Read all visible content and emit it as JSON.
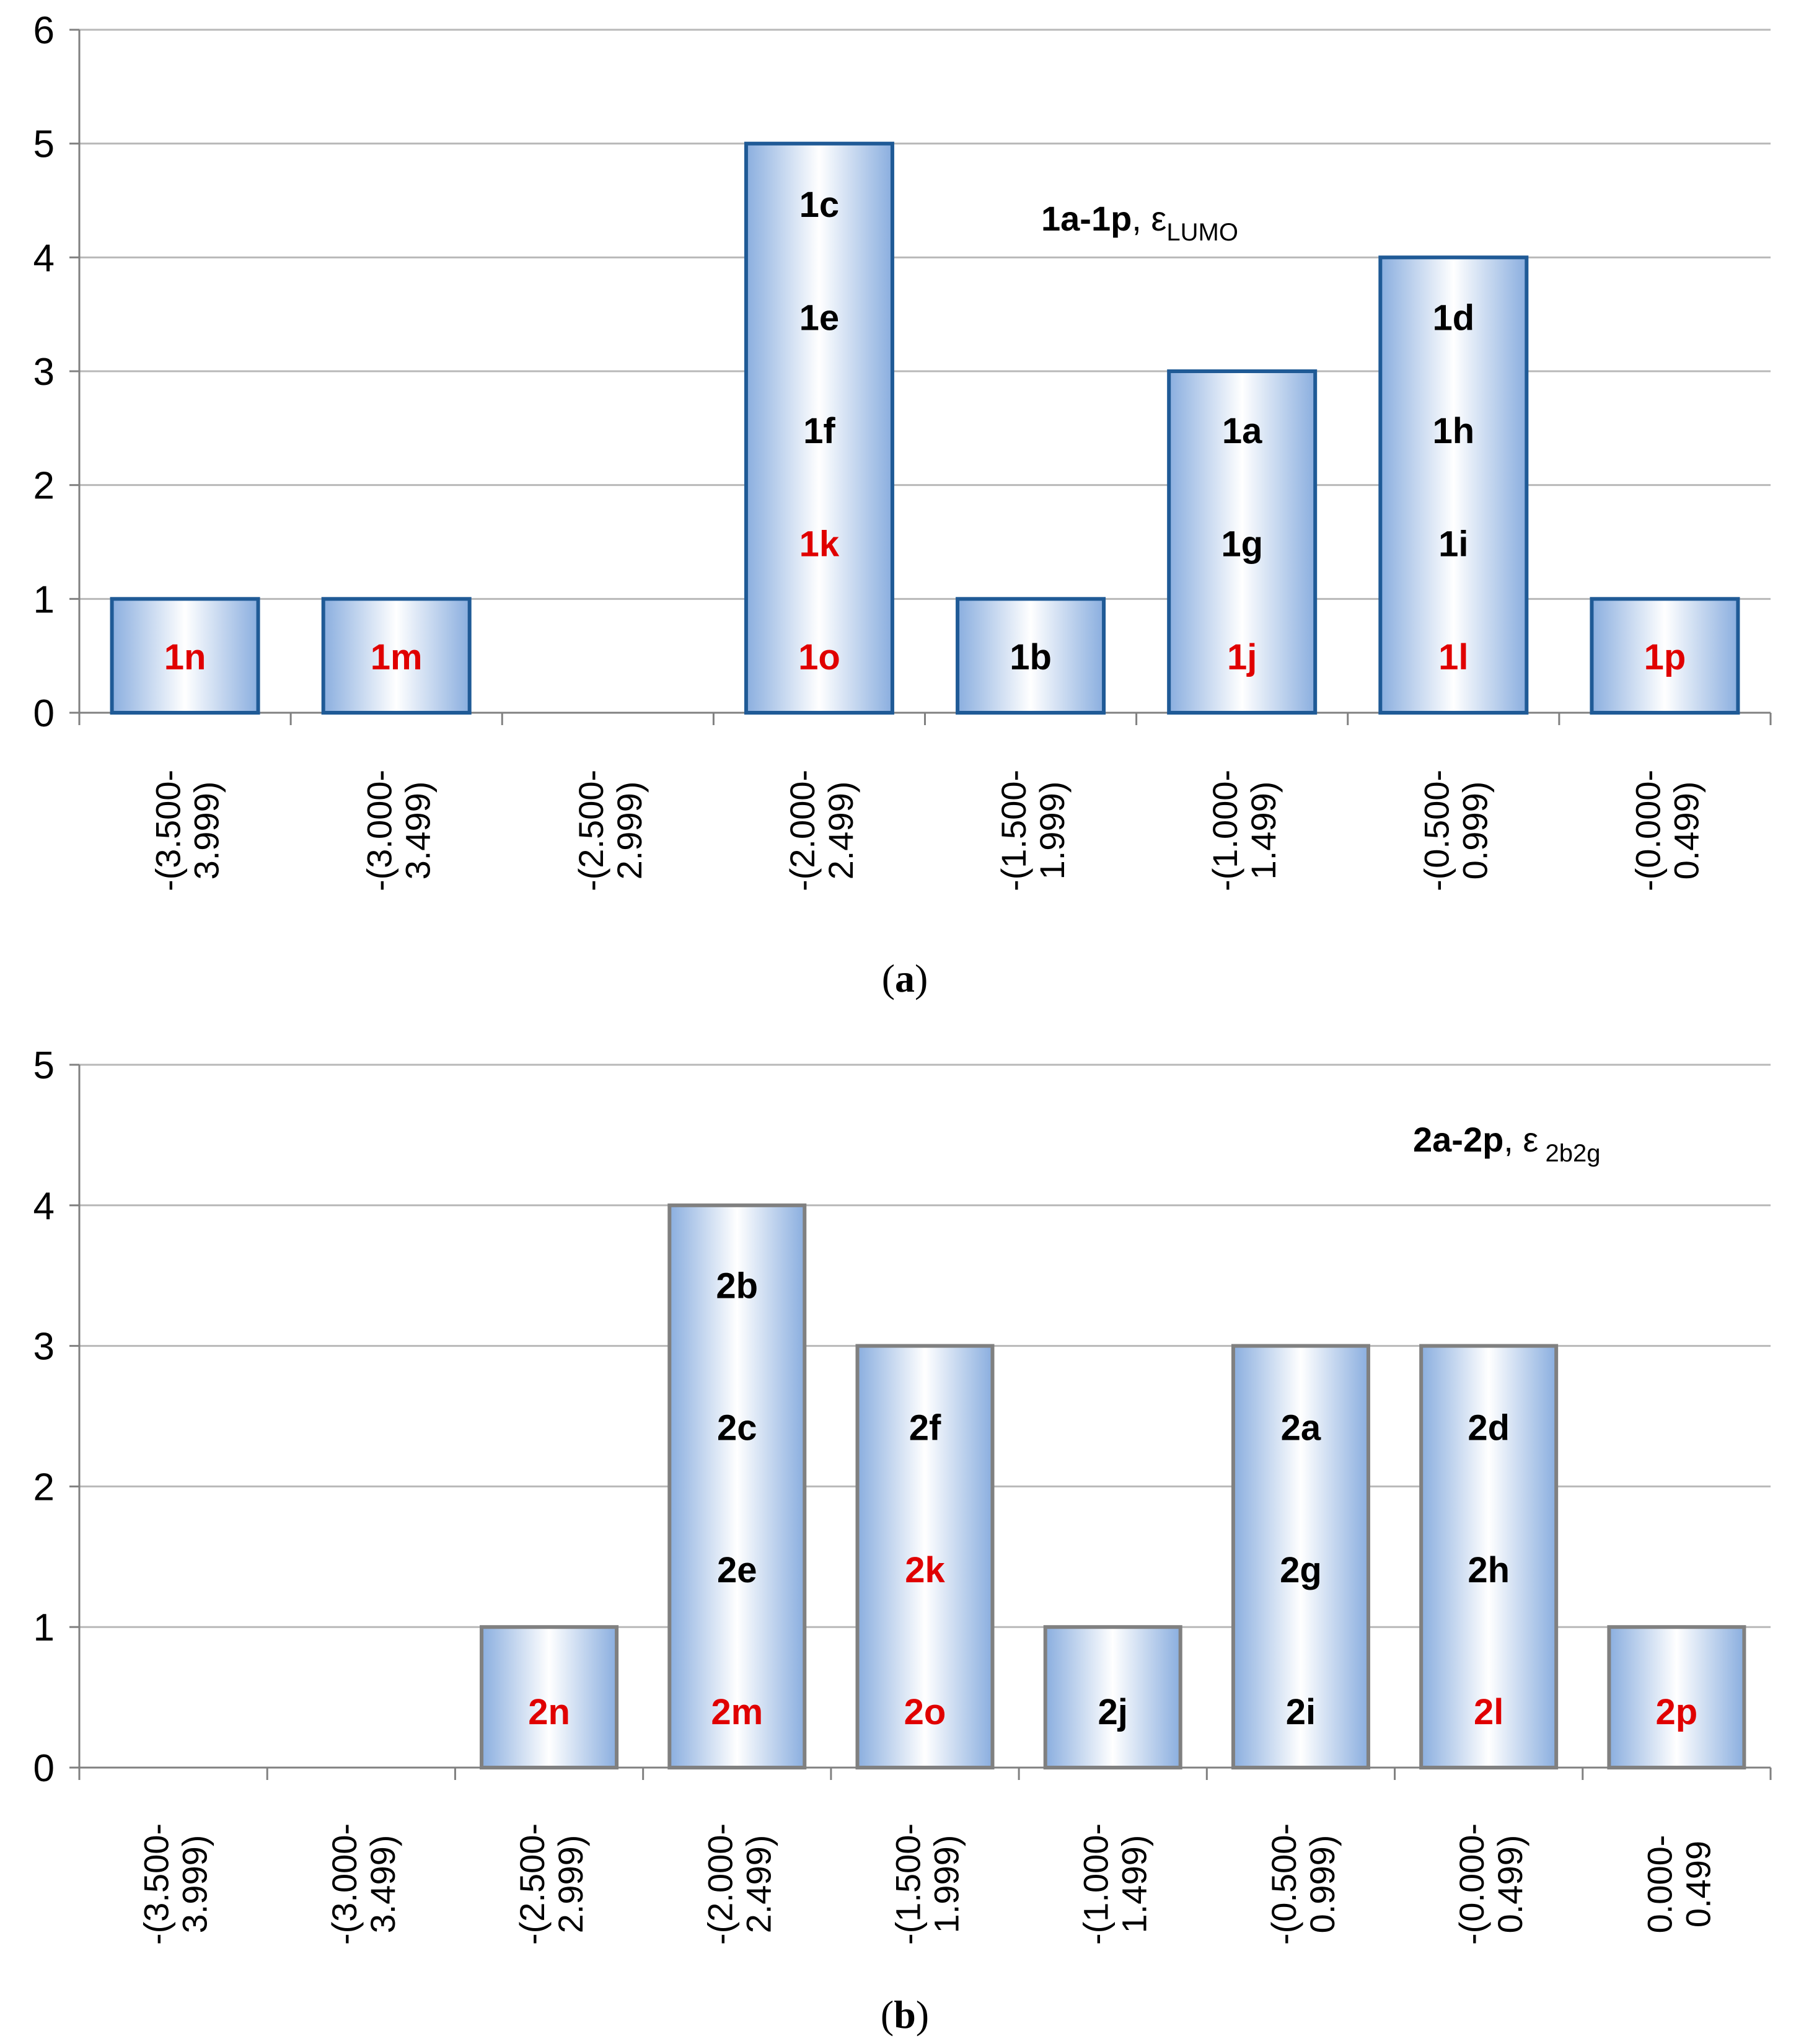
{
  "chart_data": [
    {
      "panel": "a",
      "type": "bar",
      "caption": "(a)",
      "title": {
        "bold": "1a-1p",
        "sep": ", ",
        "sym": "ε",
        "sub": "LUMO"
      },
      "ylim": [
        0,
        6
      ],
      "yticks": [
        "0",
        "1",
        "2",
        "3",
        "4",
        "5",
        "6"
      ],
      "grid": true,
      "edge_color": "#1f5a96",
      "categories": [
        {
          "l1": "-(3.500-",
          "l2": "3.999)"
        },
        {
          "l1": "-(3.000-",
          "l2": "3.499)"
        },
        {
          "l1": "-(2.500-",
          "l2": "2.999)"
        },
        {
          "l1": "-(2.000-",
          "l2": "2.499)"
        },
        {
          "l1": "-(1.500-",
          "l2": "1.999)"
        },
        {
          "l1": "-(1.000-",
          "l2": "1.499)"
        },
        {
          "l1": "-(0.500-",
          "l2": "0.999)"
        },
        {
          "l1": "-(0.000-",
          "l2": "0.499)"
        }
      ],
      "values": [
        1,
        1,
        0,
        5,
        1,
        3,
        4,
        1
      ],
      "bar_labels": [
        [
          {
            "text": "1n",
            "color": "#e00000"
          }
        ],
        [
          {
            "text": "1m",
            "color": "#e00000"
          }
        ],
        [],
        [
          {
            "text": "1c",
            "color": "#000000"
          },
          {
            "text": "1e",
            "color": "#000000"
          },
          {
            "text": "1f",
            "color": "#000000"
          },
          {
            "text": "1k",
            "color": "#e00000"
          },
          {
            "text": "1o",
            "color": "#e00000"
          }
        ],
        [
          {
            "text": "1b",
            "color": "#000000"
          }
        ],
        [
          {
            "text": "1a",
            "color": "#000000"
          },
          {
            "text": "1g",
            "color": "#000000"
          },
          {
            "text": "1j",
            "color": "#e00000"
          }
        ],
        [
          {
            "text": "1d",
            "color": "#000000"
          },
          {
            "text": "1h",
            "color": "#000000"
          },
          {
            "text": "1i",
            "color": "#000000"
          },
          {
            "text": "1l",
            "color": "#e00000"
          }
        ],
        [
          {
            "text": "1p",
            "color": "#e00000"
          }
        ]
      ]
    },
    {
      "panel": "b",
      "type": "bar",
      "caption": "(b)",
      "title": {
        "bold": "2a-2p",
        "sep": ", ",
        "sym": "ε",
        "sub": " 2b2g"
      },
      "ylim": [
        0,
        5
      ],
      "yticks": [
        "0",
        "1",
        "2",
        "3",
        "4",
        "5"
      ],
      "grid": true,
      "edge_color": "#808080",
      "categories": [
        {
          "l1": "-(3.500-",
          "l2": "3.999)"
        },
        {
          "l1": "-(3.000-",
          "l2": "3.499)"
        },
        {
          "l1": "-(2.500-",
          "l2": "2.999)"
        },
        {
          "l1": "-(2.000-",
          "l2": "2.499)"
        },
        {
          "l1": "-(1.500-",
          "l2": "1.999)"
        },
        {
          "l1": "-(1.000-",
          "l2": "1.499)"
        },
        {
          "l1": "-(0.500-",
          "l2": "0.999)"
        },
        {
          "l1": "-(0.000-",
          "l2": "0.499)"
        },
        {
          "l1": "0.000-",
          "l2": "0.499"
        }
      ],
      "values": [
        0,
        0,
        1,
        4,
        3,
        1,
        3,
        3,
        1
      ],
      "bar_labels": [
        [],
        [],
        [
          {
            "text": "2n",
            "color": "#e00000"
          }
        ],
        [
          {
            "text": "2b",
            "color": "#000000"
          },
          {
            "text": "2c",
            "color": "#000000"
          },
          {
            "text": "2e",
            "color": "#000000"
          },
          {
            "text": "2m",
            "color": "#e00000"
          }
        ],
        [
          {
            "text": "2f",
            "color": "#000000"
          },
          {
            "text": "2k",
            "color": "#e00000"
          },
          {
            "text": "2o",
            "color": "#e00000"
          }
        ],
        [
          {
            "text": "2j",
            "color": "#000000"
          }
        ],
        [
          {
            "text": "2a",
            "color": "#000000"
          },
          {
            "text": "2g",
            "color": "#000000"
          },
          {
            "text": "2i",
            "color": "#000000"
          }
        ],
        [
          {
            "text": "2d",
            "color": "#000000"
          },
          {
            "text": "2h",
            "color": "#000000"
          },
          {
            "text": "2l",
            "color": "#e00000"
          }
        ],
        [
          {
            "text": "2p",
            "color": "#e00000"
          }
        ]
      ]
    }
  ]
}
